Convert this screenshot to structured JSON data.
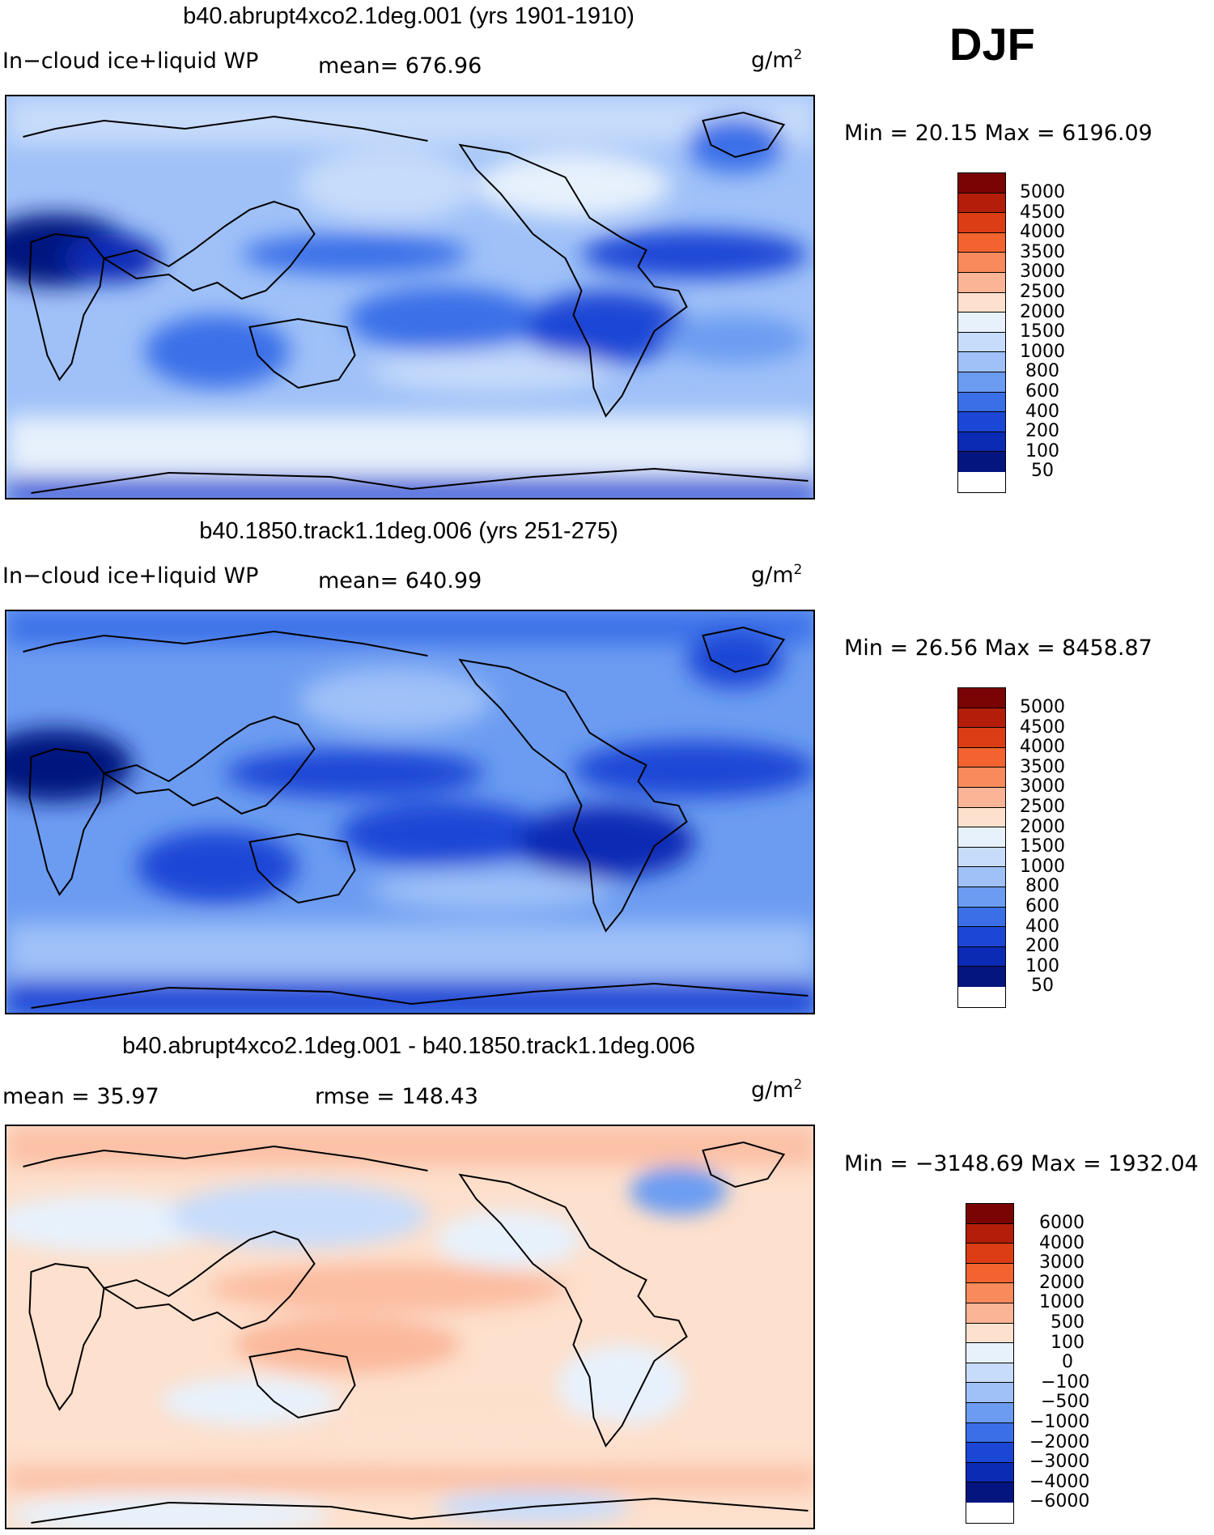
{
  "season": "DJF",
  "unit": "g/m",
  "unit_exp": "2",
  "panels": [
    {
      "title": "b40.abrupt4xco2.1deg.001 (yrs 1901-1910)",
      "left_label": "In−cloud ice+liquid WP",
      "stat1": "mean=  676.96",
      "stat2": "",
      "minmax": "Min =   20.15 Max = 6196.09",
      "levels": [
        "5000",
        "4500",
        "4000",
        "3500",
        "3000",
        "2500",
        "2000",
        "1500",
        "1000",
        "800",
        "600",
        "400",
        "200",
        "100",
        "50"
      ],
      "colors": [
        "#7a0403",
        "#b31d0a",
        "#dc3d14",
        "#f26330",
        "#f88a5c",
        "#fbb496",
        "#fde0cd",
        "#e7f1fc",
        "#c7dcfb",
        "#9fc1f8",
        "#6c9cf1",
        "#3b6fe8",
        "#1c47d6",
        "#0b2bb5",
        "#04157f"
      ]
    },
    {
      "title": "b40.1850.track1.1deg.006 (yrs 251-275)",
      "left_label": "In−cloud ice+liquid WP",
      "stat1": "mean=  640.99",
      "stat2": "",
      "minmax": "Min =   26.56 Max = 8458.87",
      "levels": [
        "5000",
        "4500",
        "4000",
        "3500",
        "3000",
        "2500",
        "2000",
        "1500",
        "1000",
        "800",
        "600",
        "400",
        "200",
        "100",
        "50"
      ],
      "colors": [
        "#7a0403",
        "#b31d0a",
        "#dc3d14",
        "#f26330",
        "#f88a5c",
        "#fbb496",
        "#fde0cd",
        "#e7f1fc",
        "#c7dcfb",
        "#9fc1f8",
        "#6c9cf1",
        "#3b6fe8",
        "#1c47d6",
        "#0b2bb5",
        "#04157f"
      ]
    },
    {
      "title": "b40.abrupt4xco2.1deg.001 - b40.1850.track1.1deg.006",
      "left_label": "mean =   35.97",
      "stat1": "rmse  =  148.43",
      "stat2": "",
      "minmax": "Min = −3148.69 Max =  1932.04",
      "levels": [
        "6000",
        "4000",
        "3000",
        "2000",
        "1000",
        "500",
        "100",
        "0",
        "−100",
        "−500",
        "−1000",
        "−2000",
        "−3000",
        "−4000",
        "−6000"
      ],
      "colors": [
        "#7a0403",
        "#b31d0a",
        "#dc3d14",
        "#f26330",
        "#f88a5c",
        "#fbb496",
        "#fde0cd",
        "#e7f1fc",
        "#c7dcfb",
        "#9fc1f8",
        "#6c9cf1",
        "#3b6fe8",
        "#1c47d6",
        "#0b2bb5",
        "#04157f"
      ]
    }
  ]
}
